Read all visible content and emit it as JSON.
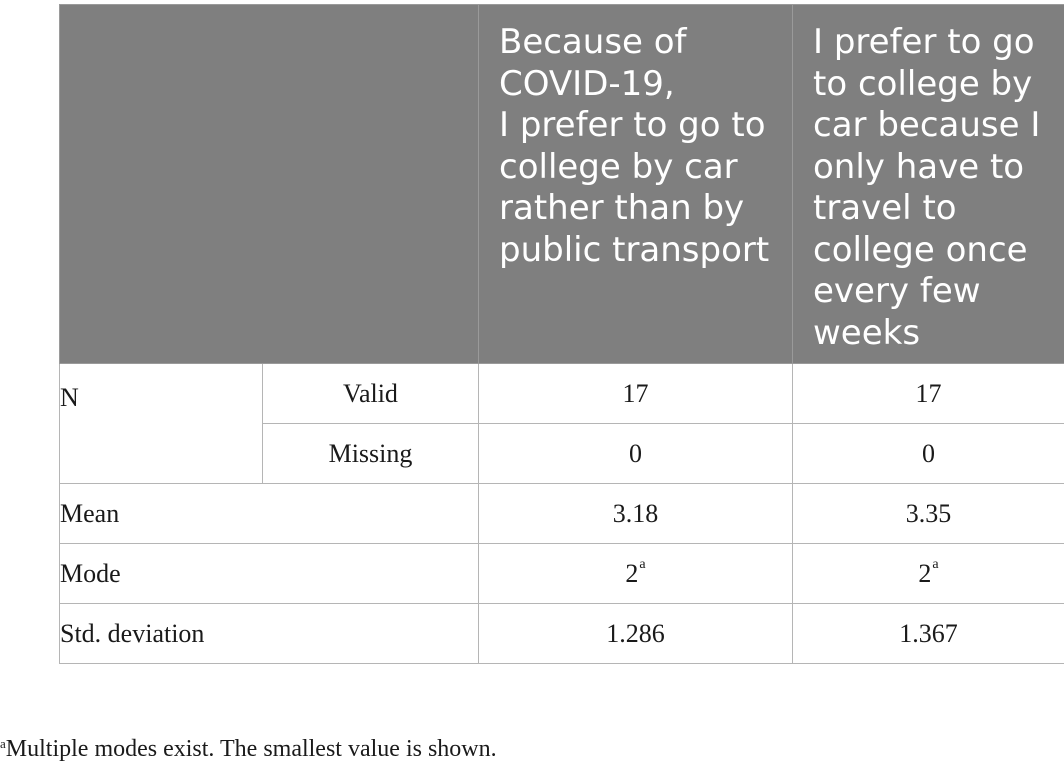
{
  "table": {
    "headers": {
      "col3": "Because of\nCOVID-19,\nI prefer to go to college by car rather than by public transport",
      "col4": "I prefer to go to college by car because I only have to travel to college once every few weeks"
    },
    "rows": {
      "n_label": "N",
      "valid": {
        "label": "Valid",
        "col3": "17",
        "col4": "17"
      },
      "missing": {
        "label": "Missing",
        "col3": "0",
        "col4": "0"
      },
      "mean": {
        "label": "Mean",
        "col3": "3.18",
        "col4": "3.35"
      },
      "mode": {
        "label": "Mode",
        "col3": "2",
        "col3_mark": "a",
        "col4": "2",
        "col4_mark": "a"
      },
      "std": {
        "label": "Std. deviation",
        "col3": "1.286",
        "col4": "1.367"
      }
    }
  },
  "footnote": {
    "mark": "a",
    "text": "Multiple modes exist. The smallest value is shown."
  }
}
